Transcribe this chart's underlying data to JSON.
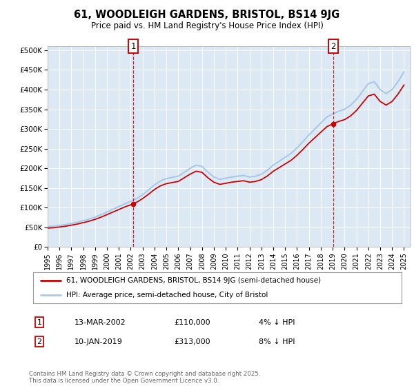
{
  "title": "61, WOODLEIGH GARDENS, BRISTOL, BS14 9JG",
  "subtitle": "Price paid vs. HM Land Registry's House Price Index (HPI)",
  "ylabel_ticks": [
    "£0",
    "£50K",
    "£100K",
    "£150K",
    "£200K",
    "£250K",
    "£300K",
    "£350K",
    "£400K",
    "£450K",
    "£500K"
  ],
  "ylim": [
    0,
    510000
  ],
  "xlim_start": 1995.0,
  "xlim_end": 2025.5,
  "plot_bg_color": "#dce9f5",
  "grid_color": "#ffffff",
  "line_color_hpi": "#a8c8e8",
  "line_color_price": "#cc0000",
  "purchase1_x": 2002.2,
  "purchase1_y": 110000,
  "purchase2_x": 2019.03,
  "purchase2_y": 313000,
  "legend_label1": "61, WOODLEIGH GARDENS, BRISTOL, BS14 9JG (semi-detached house)",
  "legend_label2": "HPI: Average price, semi-detached house, City of Bristol",
  "annotation1_label": "1",
  "annotation2_label": "2",
  "table_row1": [
    "1",
    "13-MAR-2002",
    "£110,000",
    "4% ↓ HPI"
  ],
  "table_row2": [
    "2",
    "10-JAN-2019",
    "£313,000",
    "8% ↓ HPI"
  ],
  "footer": "Contains HM Land Registry data © Crown copyright and database right 2025.\nThis data is licensed under the Open Government Licence v3.0.",
  "hpi_years": [
    1995,
    1995.5,
    1996,
    1996.5,
    1997,
    1997.5,
    1998,
    1998.5,
    1999,
    1999.5,
    2000,
    2000.5,
    2001,
    2001.5,
    2002,
    2002.5,
    2003,
    2003.5,
    2004,
    2004.5,
    2005,
    2005.5,
    2006,
    2006.5,
    2007,
    2007.5,
    2008,
    2008.5,
    2009,
    2009.5,
    2010,
    2010.5,
    2011,
    2011.5,
    2012,
    2012.5,
    2013,
    2013.5,
    2014,
    2014.5,
    2015,
    2015.5,
    2016,
    2016.5,
    2017,
    2017.5,
    2018,
    2018.5,
    2019,
    2019.5,
    2020,
    2020.5,
    2021,
    2021.5,
    2022,
    2022.5,
    2023,
    2023.5,
    2024,
    2024.5,
    2025
  ],
  "hpi_values": [
    52000,
    53000,
    55000,
    57000,
    60000,
    63000,
    67000,
    71000,
    76000,
    82000,
    89000,
    96000,
    103000,
    110000,
    116000,
    123000,
    133000,
    145000,
    158000,
    168000,
    174000,
    177000,
    180000,
    190000,
    200000,
    208000,
    205000,
    190000,
    178000,
    172000,
    175000,
    178000,
    180000,
    182000,
    178000,
    180000,
    185000,
    195000,
    208000,
    218000,
    228000,
    238000,
    252000,
    268000,
    285000,
    300000,
    315000,
    330000,
    338000,
    345000,
    350000,
    360000,
    375000,
    395000,
    415000,
    420000,
    400000,
    390000,
    400000,
    420000,
    445000
  ],
  "xtick_years": [
    1995,
    1996,
    1997,
    1998,
    1999,
    2000,
    2001,
    2002,
    2003,
    2004,
    2005,
    2006,
    2007,
    2008,
    2009,
    2010,
    2011,
    2012,
    2013,
    2014,
    2015,
    2016,
    2017,
    2018,
    2019,
    2020,
    2021,
    2022,
    2023,
    2024,
    2025
  ]
}
